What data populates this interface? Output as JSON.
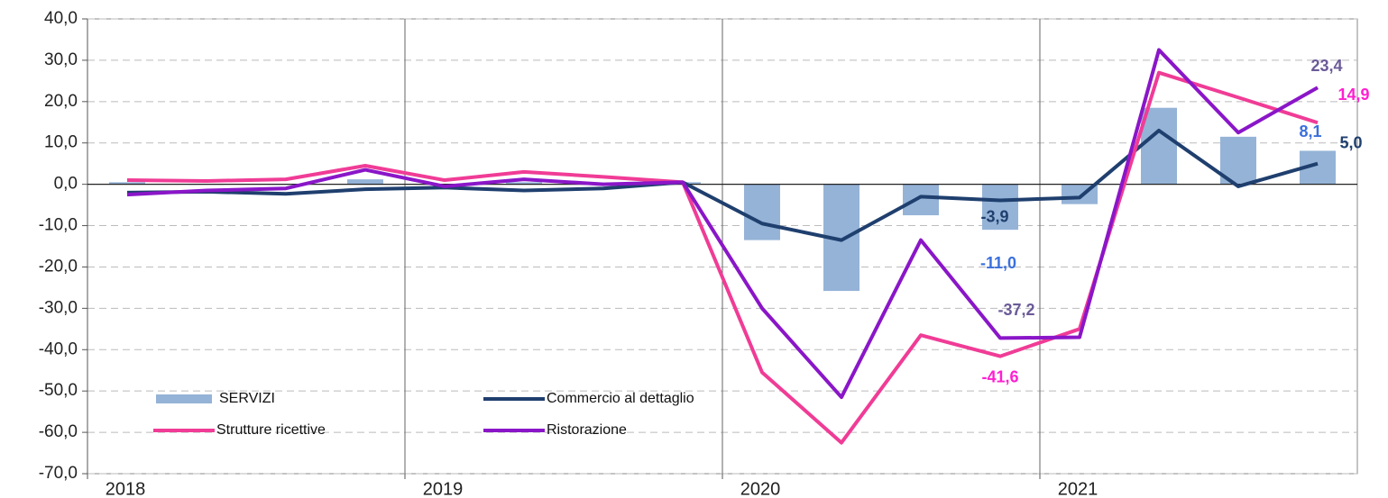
{
  "chart_data": {
    "type": "combo",
    "categories": [
      null,
      null,
      null,
      null,
      null,
      null,
      null,
      null,
      null,
      null,
      null,
      null,
      null,
      null,
      null,
      null
    ],
    "year_labels": [
      "2018",
      "2019",
      "2020",
      "2021"
    ],
    "ylim": [
      -70,
      40
    ],
    "yticks": [
      {
        "value": -70,
        "label": "-70,0"
      },
      {
        "value": -60,
        "label": "-60,0"
      },
      {
        "value": -50,
        "label": "-50,0"
      },
      {
        "value": -40,
        "label": "-40,0"
      },
      {
        "value": -30,
        "label": "-30,0"
      },
      {
        "value": -20,
        "label": "-20,0"
      },
      {
        "value": -10,
        "label": "-10,0"
      },
      {
        "value": 0,
        "label": "0,0"
      },
      {
        "value": 10,
        "label": "10,0"
      },
      {
        "value": 20,
        "label": "20,0"
      },
      {
        "value": 30,
        "label": "30,0"
      },
      {
        "value": 40,
        "label": "40,0"
      }
    ],
    "grid": true,
    "series": [
      {
        "name": "SERVIZI",
        "type": "bar",
        "color": "#95b3d7",
        "label_color": "#3b6fdc",
        "values": [
          0.5,
          0,
          0,
          1.2,
          0,
          0.5,
          0.3,
          0.5,
          -13.5,
          -25.8,
          -7.5,
          -11.0,
          -4.8,
          18.5,
          11.5,
          8.1
        ],
        "value_labels": [
          null,
          null,
          null,
          null,
          null,
          null,
          null,
          null,
          null,
          null,
          null,
          "-11,0",
          null,
          null,
          null,
          "8,1"
        ]
      },
      {
        "name": "Commercio al dettaglio",
        "type": "line",
        "color": "#1f3f6e",
        "label_color": "#1f3f6e",
        "values": [
          -2,
          -1.8,
          -2.3,
          -1.2,
          -0.8,
          -1.5,
          -1.0,
          0.5,
          -9.5,
          -13.5,
          -3,
          -3.9,
          -3.2,
          13,
          -0.5,
          5.0
        ],
        "value_labels": [
          null,
          null,
          null,
          null,
          null,
          null,
          null,
          null,
          null,
          null,
          null,
          "-3,9",
          null,
          null,
          null,
          "5,0"
        ]
      },
      {
        "name": "Strutture ricettive",
        "type": "line",
        "color": "#f03c96",
        "label_color": "#ff1fd0",
        "values": [
          1,
          0.8,
          1.2,
          4.5,
          1,
          3,
          1.8,
          0.5,
          -45.5,
          -62.5,
          -36.5,
          -41.6,
          -35,
          27,
          21,
          14.9
        ],
        "value_labels": [
          null,
          null,
          null,
          null,
          null,
          null,
          null,
          null,
          null,
          null,
          null,
          "-41,6",
          null,
          null,
          null,
          "14,9"
        ]
      },
      {
        "name": "Ristorazione",
        "type": "line",
        "color": "#8a16c8",
        "label_color": "#6b5b98",
        "values": [
          -2.5,
          -1.5,
          -1,
          3.5,
          -0.5,
          1.2,
          0,
          0.5,
          -30,
          -51.5,
          -13.5,
          -37.2,
          -37,
          32.5,
          12.5,
          23.4
        ],
        "value_labels": [
          null,
          null,
          null,
          null,
          null,
          null,
          null,
          null,
          null,
          null,
          null,
          "-37,2",
          null,
          null,
          null,
          "23,4"
        ]
      }
    ]
  }
}
